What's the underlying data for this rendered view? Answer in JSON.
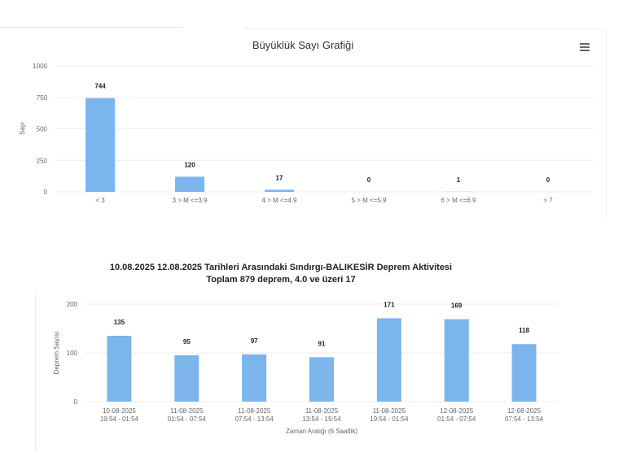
{
  "chart_data": [
    {
      "type": "bar",
      "title": "Büyüklük Sayı Grafiği",
      "xlabel": "",
      "ylabel": "Sayı",
      "categories": [
        "< 3",
        "3 > M <=3.9",
        "4 > M <=4.9",
        "5 > M <=5.9",
        "6 > M <=6.9",
        "> 7"
      ],
      "values": [
        744,
        120,
        17,
        0,
        1,
        0
      ],
      "yticks": [
        "0",
        "250",
        "500",
        "750",
        "1000"
      ],
      "ylim": [
        0,
        1000
      ],
      "grid": true,
      "color": "#7cb5ec"
    },
    {
      "type": "bar",
      "title": "10.08.2025 12.08.2025 Tarihleri Arasındaki Sındırgı-BALIKESİR Deprem Aktivitesi",
      "subtitle": "Toplam  879  deprem, 4.0 ve üzeri 17",
      "xlabel": "Zaman Aralığı (6 Saatlik)",
      "ylabel": "Deprem Sayısı",
      "categories": [
        [
          "10-08-2025",
          "19:54 - 01:54"
        ],
        [
          "11-08-2025",
          "01:54 - 07:54"
        ],
        [
          "11-08-2025",
          "07:54 - 13:54"
        ],
        [
          "11-08-2025",
          "13:54 - 19:54"
        ],
        [
          "11-08-2025",
          "19:54 - 01:54"
        ],
        [
          "12-08-2025",
          "01:54 - 07:54"
        ],
        [
          "12-08-2025",
          "07:54 - 13:54"
        ]
      ],
      "values": [
        135,
        95,
        97,
        91,
        171,
        169,
        118
      ],
      "yticks": [
        "0",
        "100",
        "200"
      ],
      "ylim": [
        0,
        200
      ],
      "grid": true,
      "color": "#7cb5ec"
    }
  ],
  "chart1": {
    "title": "Büyüklük Sayı Grafiği",
    "ylabel": "Sayı",
    "menu_icon": "hamburger-menu-icon"
  },
  "chart2": {
    "title_line1": "10.08.2025 12.08.2025 Tarihleri Arasındaki Sındırgı-BALIKESİR Deprem Aktivitesi",
    "title_line2": "Toplam  879  deprem, 4.0 ve üzeri 17",
    "ylabel": "Deprem Sayısı",
    "xlabel": "Zaman Aralığı (6 Saatlik)"
  }
}
